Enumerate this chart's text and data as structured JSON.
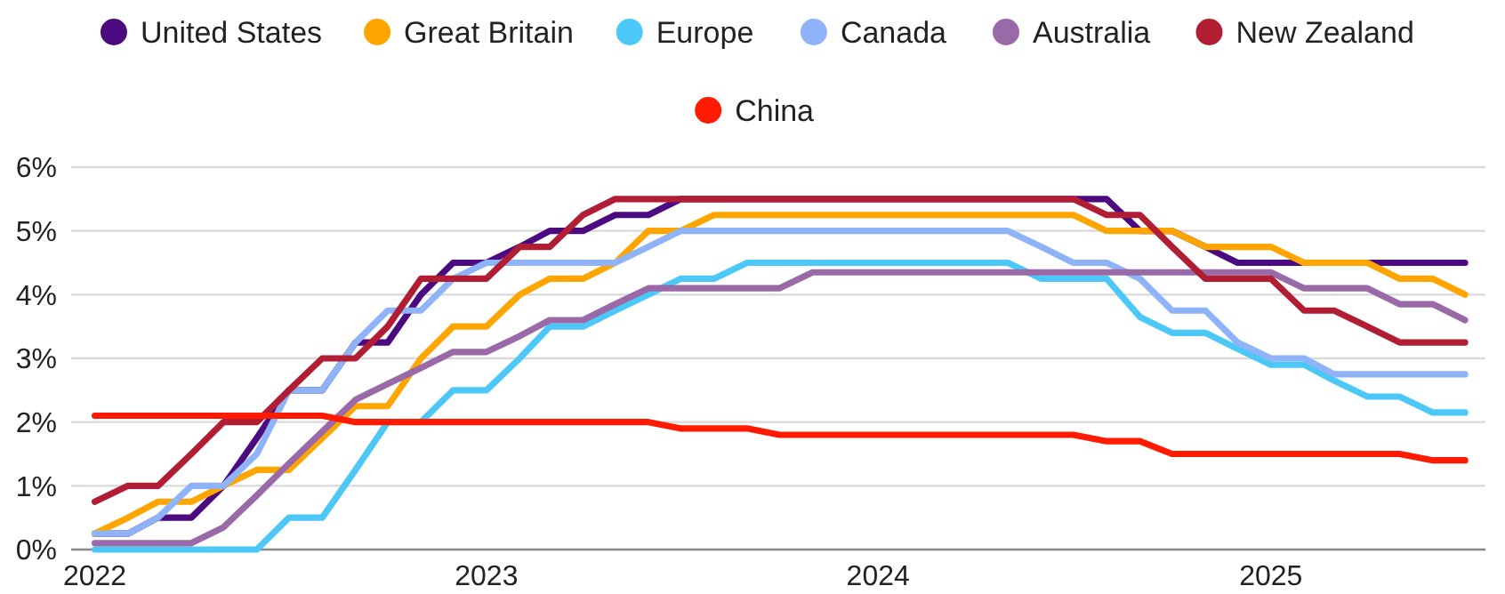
{
  "chart_data": {
    "type": "line",
    "legend": "top",
    "grid": "y",
    "line_style": "solid",
    "x": [
      "2022-01",
      "2022-02",
      "2022-03",
      "2022-04",
      "2022-05",
      "2022-06",
      "2022-07",
      "2022-08",
      "2022-09",
      "2022-10",
      "2022-11",
      "2022-12",
      "2023-01",
      "2023-02",
      "2023-03",
      "2023-04",
      "2023-05",
      "2023-06",
      "2023-07",
      "2023-08",
      "2023-09",
      "2023-10",
      "2023-11",
      "2023-12",
      "2024-01",
      "2024-02",
      "2024-03",
      "2024-04",
      "2024-05",
      "2024-06",
      "2024-07",
      "2024-08",
      "2024-09",
      "2024-10",
      "2024-11",
      "2024-12",
      "2025-01",
      "2025-02",
      "2025-03",
      "2025-04",
      "2025-05",
      "2025-06",
      "2025-07"
    ],
    "xlim": [
      "2021-12-10",
      "2025-07-20"
    ],
    "xticks": [
      {
        "value": "2022-01",
        "label": "2022"
      },
      {
        "value": "2023-01",
        "label": "2023"
      },
      {
        "value": "2024-01",
        "label": "2024"
      },
      {
        "value": "2025-01",
        "label": "2025"
      }
    ],
    "ylim": [
      0,
      6
    ],
    "yticks": [
      {
        "value": 0,
        "label": "0%"
      },
      {
        "value": 1,
        "label": "1%"
      },
      {
        "value": 2,
        "label": "2%"
      },
      {
        "value": 3,
        "label": "3%"
      },
      {
        "value": 4,
        "label": "4%"
      },
      {
        "value": 5,
        "label": "5%"
      },
      {
        "value": 6,
        "label": "6%"
      }
    ],
    "series": [
      {
        "name": "United States",
        "color": "#4b0a80",
        "values": [
          0.25,
          0.25,
          0.5,
          0.5,
          1.0,
          1.75,
          2.5,
          2.5,
          3.25,
          3.25,
          4.0,
          4.5,
          4.5,
          4.75,
          5.0,
          5.0,
          5.25,
          5.25,
          5.5,
          5.5,
          5.5,
          5.5,
          5.5,
          5.5,
          5.5,
          5.5,
          5.5,
          5.5,
          5.5,
          5.5,
          5.5,
          5.5,
          5.0,
          5.0,
          4.75,
          4.5,
          4.5,
          4.5,
          4.5,
          4.5,
          4.5,
          4.5,
          4.5
        ]
      },
      {
        "name": "Great Britain",
        "color": "#ffa500",
        "values": [
          0.25,
          0.5,
          0.75,
          0.75,
          1.0,
          1.25,
          1.25,
          1.75,
          2.25,
          2.25,
          3.0,
          3.5,
          3.5,
          4.0,
          4.25,
          4.25,
          4.5,
          5.0,
          5.0,
          5.25,
          5.25,
          5.25,
          5.25,
          5.25,
          5.25,
          5.25,
          5.25,
          5.25,
          5.25,
          5.25,
          5.25,
          5.0,
          5.0,
          5.0,
          4.75,
          4.75,
          4.75,
          4.5,
          4.5,
          4.5,
          4.25,
          4.25,
          4.0
        ]
      },
      {
        "name": "Europe",
        "color": "#4cc8f8",
        "values": [
          0,
          0,
          0,
          0,
          0,
          0,
          0.5,
          0.5,
          1.25,
          2.0,
          2.0,
          2.5,
          2.5,
          3.0,
          3.5,
          3.5,
          3.75,
          4.0,
          4.25,
          4.25,
          4.5,
          4.5,
          4.5,
          4.5,
          4.5,
          4.5,
          4.5,
          4.5,
          4.5,
          4.25,
          4.25,
          4.25,
          3.65,
          3.4,
          3.4,
          3.15,
          2.9,
          2.9,
          2.65,
          2.4,
          2.4,
          2.15,
          2.15
        ]
      },
      {
        "name": "Canada",
        "color": "#8fb3f8",
        "values": [
          0.25,
          0.25,
          0.5,
          1.0,
          1.0,
          1.5,
          2.5,
          2.5,
          3.25,
          3.75,
          3.75,
          4.25,
          4.5,
          4.5,
          4.5,
          4.5,
          4.5,
          4.75,
          5.0,
          5.0,
          5.0,
          5.0,
          5.0,
          5.0,
          5.0,
          5.0,
          5.0,
          5.0,
          5.0,
          4.75,
          4.5,
          4.5,
          4.25,
          3.75,
          3.75,
          3.25,
          3.0,
          3.0,
          2.75,
          2.75,
          2.75,
          2.75,
          2.75
        ]
      },
      {
        "name": "Australia",
        "color": "#9a69a8",
        "values": [
          0.1,
          0.1,
          0.1,
          0.1,
          0.35,
          0.85,
          1.35,
          1.85,
          2.35,
          2.6,
          2.85,
          3.1,
          3.1,
          3.35,
          3.6,
          3.6,
          3.85,
          4.1,
          4.1,
          4.1,
          4.1,
          4.1,
          4.35,
          4.35,
          4.35,
          4.35,
          4.35,
          4.35,
          4.35,
          4.35,
          4.35,
          4.35,
          4.35,
          4.35,
          4.35,
          4.35,
          4.35,
          4.1,
          4.1,
          4.1,
          3.85,
          3.85,
          3.6
        ]
      },
      {
        "name": "New Zealand",
        "color": "#b11e34",
        "values": [
          0.75,
          1.0,
          1.0,
          1.5,
          2.0,
          2.0,
          2.5,
          3.0,
          3.0,
          3.5,
          4.25,
          4.25,
          4.25,
          4.75,
          4.75,
          5.25,
          5.5,
          5.5,
          5.5,
          5.5,
          5.5,
          5.5,
          5.5,
          5.5,
          5.5,
          5.5,
          5.5,
          5.5,
          5.5,
          5.5,
          5.5,
          5.25,
          5.25,
          4.75,
          4.25,
          4.25,
          4.25,
          3.75,
          3.75,
          3.5,
          3.25,
          3.25,
          3.25
        ]
      },
      {
        "name": "China",
        "color": "#ff1a00",
        "values": [
          2.1,
          2.1,
          2.1,
          2.1,
          2.1,
          2.1,
          2.1,
          2.1,
          2.0,
          2.0,
          2.0,
          2.0,
          2.0,
          2.0,
          2.0,
          2.0,
          2.0,
          2.0,
          1.9,
          1.9,
          1.9,
          1.8,
          1.8,
          1.8,
          1.8,
          1.8,
          1.8,
          1.8,
          1.8,
          1.8,
          1.8,
          1.7,
          1.7,
          1.5,
          1.5,
          1.5,
          1.5,
          1.5,
          1.5,
          1.5,
          1.5,
          1.4,
          1.4
        ]
      }
    ]
  }
}
